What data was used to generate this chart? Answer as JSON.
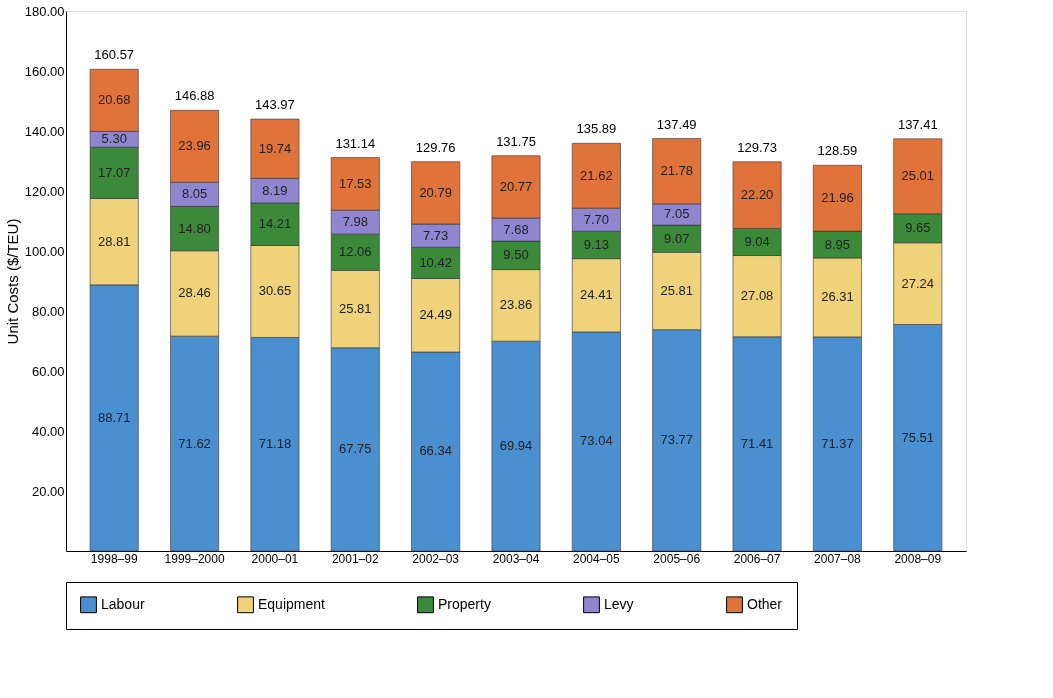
{
  "chart_data": {
    "type": "bar",
    "stacked": true,
    "ylabel": "Unit Costs ($/TEU)",
    "categories": [
      "1998–99",
      "1999–2000",
      "2000–01",
      "2001–02",
      "2002–03",
      "2003–04",
      "2004–05",
      "2005–06",
      "2006–07",
      "2007–08",
      "2008–09"
    ],
    "series": [
      {
        "name": "Labour",
        "color": "#4a8fcf",
        "values": [
          88.71,
          71.62,
          71.18,
          67.75,
          66.34,
          69.94,
          73.04,
          73.77,
          71.41,
          71.37,
          75.51
        ],
        "value_labels": [
          "88.71",
          "71.62",
          "71.18",
          "67.75",
          "66.34",
          "69.94",
          "73.04",
          "73.77",
          "71.41",
          "71.37",
          "75.51"
        ]
      },
      {
        "name": "Equipment",
        "color": "#f0d27a",
        "values": [
          28.81,
          28.46,
          30.65,
          25.81,
          24.49,
          23.86,
          24.41,
          25.81,
          27.08,
          26.31,
          27.24
        ],
        "value_labels": [
          "28.81",
          "28.46",
          "30.65",
          "25.81",
          "24.49",
          "23.86",
          "24.41",
          "25.81",
          "27.08",
          "26.31",
          "27.24"
        ]
      },
      {
        "name": "Property",
        "color": "#3a8a3a",
        "values": [
          17.07,
          14.8,
          14.21,
          12.06,
          10.42,
          9.5,
          9.13,
          9.07,
          9.04,
          8.95,
          9.65
        ],
        "value_labels": [
          "17.07",
          "14.80",
          "14.21",
          "12.06",
          "10.42",
          "9.50",
          "9.13",
          "9.07",
          "9.04",
          "8.95",
          "9.65"
        ]
      },
      {
        "name": "Levy",
        "color": "#8f86cf",
        "values": [
          5.3,
          8.05,
          8.19,
          7.98,
          7.73,
          7.68,
          7.7,
          7.05,
          null,
          null,
          null
        ],
        "value_labels": [
          "5.30",
          "8.05",
          "8.19",
          "7.98",
          "7.73",
          "7.68",
          "7.70",
          "7.05",
          null,
          null,
          null
        ]
      },
      {
        "name": "Other",
        "color": "#e0733a",
        "values": [
          20.68,
          23.96,
          19.74,
          17.53,
          20.79,
          20.77,
          21.62,
          21.78,
          22.2,
          21.96,
          25.01
        ],
        "value_labels": [
          "20.68",
          "23.96",
          "19.74",
          "17.53",
          "20.79",
          "20.77",
          "21.62",
          "21.78",
          "22.20",
          "21.96",
          "25.01"
        ]
      }
    ],
    "totals": [
      "160.57",
      "146.88",
      "143.97",
      "131.14",
      "129.76",
      "131.75",
      "135.89",
      "137.49",
      "129.73",
      "128.59",
      "137.41"
    ],
    "ylim": [
      0,
      180
    ],
    "yticks": [
      {
        "value": 20,
        "label": "20.00"
      },
      {
        "value": 40,
        "label": "40.00"
      },
      {
        "value": 60,
        "label": "60.00"
      },
      {
        "value": 80,
        "label": "80.00"
      },
      {
        "value": 100,
        "label": "100.00"
      },
      {
        "value": 120,
        "label": "120.00"
      },
      {
        "value": 140,
        "label": "140.00"
      },
      {
        "value": 160,
        "label": "160.00"
      },
      {
        "value": 180,
        "label": "180.00"
      }
    ],
    "grid": false,
    "legend": "bottom"
  }
}
